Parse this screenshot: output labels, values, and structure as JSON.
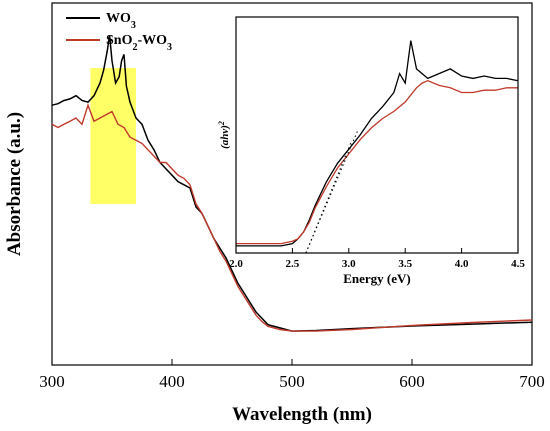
{
  "chart_data": [
    {
      "type": "line",
      "xlabel": "Wavelength (nm)",
      "ylabel": "Absorbance (a.u.)",
      "xlim": [
        300,
        700
      ],
      "xticks": [
        300,
        400,
        500,
        600,
        700
      ],
      "legend_position": "top-left",
      "highlight_region": {
        "x_range": [
          332,
          370
        ],
        "color": "#ffff66"
      },
      "series": [
        {
          "name": "WO",
          "name_sub": "3",
          "color": "#000000",
          "x": [
            300,
            305,
            310,
            315,
            320,
            325,
            330,
            335,
            340,
            343,
            346,
            348,
            350,
            353,
            356,
            358,
            360,
            362,
            365,
            370,
            375,
            380,
            385,
            390,
            395,
            400,
            405,
            410,
            415,
            420,
            425,
            430,
            435,
            440,
            445,
            450,
            455,
            460,
            465,
            470,
            475,
            480,
            490,
            500,
            520,
            550,
            600,
            650,
            700
          ],
          "y": [
            0.76,
            0.765,
            0.775,
            0.78,
            0.79,
            0.775,
            0.77,
            0.79,
            0.83,
            0.87,
            0.93,
            0.98,
            0.9,
            0.83,
            0.85,
            0.9,
            0.92,
            0.82,
            0.77,
            0.72,
            0.7,
            0.65,
            0.62,
            0.58,
            0.56,
            0.54,
            0.52,
            0.51,
            0.5,
            0.44,
            0.42,
            0.38,
            0.34,
            0.31,
            0.28,
            0.24,
            0.2,
            0.17,
            0.14,
            0.11,
            0.09,
            0.07,
            0.06,
            0.05,
            0.052,
            0.058,
            0.066,
            0.072,
            0.078
          ]
        },
        {
          "name": "SnO",
          "name_sub": "2",
          "name_suffix": "-WO",
          "name_suffix_sub": "3",
          "color": "#c0392b",
          "x": [
            300,
            305,
            310,
            315,
            320,
            325,
            330,
            335,
            340,
            345,
            350,
            355,
            360,
            365,
            370,
            375,
            380,
            385,
            390,
            395,
            400,
            405,
            410,
            415,
            420,
            425,
            430,
            435,
            440,
            445,
            450,
            455,
            460,
            465,
            470,
            475,
            480,
            490,
            500,
            520,
            550,
            600,
            650,
            700
          ],
          "y": [
            0.7,
            0.69,
            0.7,
            0.71,
            0.72,
            0.7,
            0.76,
            0.71,
            0.72,
            0.73,
            0.74,
            0.7,
            0.69,
            0.66,
            0.65,
            0.64,
            0.62,
            0.6,
            0.58,
            0.58,
            0.56,
            0.54,
            0.53,
            0.51,
            0.45,
            0.42,
            0.38,
            0.34,
            0.3,
            0.27,
            0.23,
            0.19,
            0.16,
            0.13,
            0.1,
            0.08,
            0.065,
            0.055,
            0.05,
            0.05,
            0.055,
            0.068,
            0.077,
            0.085
          ]
        }
      ]
    },
    {
      "type": "line",
      "position": "inset",
      "xlabel": "Energy (eV)",
      "ylabel": "(ahv)",
      "ylabel_sup": "2",
      "xlim": [
        2.0,
        4.5
      ],
      "xticks": [
        "2.0",
        "2.5",
        "3.0",
        "3.5",
        "4.0",
        "4.5"
      ],
      "series": [
        {
          "name": "WO3",
          "color": "#000000",
          "x": [
            2.0,
            2.2,
            2.4,
            2.5,
            2.55,
            2.6,
            2.65,
            2.7,
            2.8,
            2.9,
            3.0,
            3.1,
            3.2,
            3.3,
            3.4,
            3.45,
            3.5,
            3.55,
            3.6,
            3.65,
            3.7,
            3.8,
            3.9,
            4.0,
            4.1,
            4.2,
            4.3,
            4.4,
            4.5
          ],
          "y": [
            0.03,
            0.03,
            0.03,
            0.04,
            0.06,
            0.09,
            0.14,
            0.2,
            0.3,
            0.38,
            0.44,
            0.5,
            0.57,
            0.62,
            0.68,
            0.76,
            0.72,
            0.9,
            0.78,
            0.76,
            0.74,
            0.76,
            0.78,
            0.75,
            0.74,
            0.75,
            0.74,
            0.74,
            0.73
          ]
        },
        {
          "name": "SnO2-WO3",
          "color": "#c0392b",
          "x": [
            2.0,
            2.2,
            2.4,
            2.5,
            2.55,
            2.6,
            2.65,
            2.7,
            2.8,
            2.9,
            3.0,
            3.1,
            3.2,
            3.3,
            3.4,
            3.5,
            3.6,
            3.65,
            3.7,
            3.8,
            3.9,
            4.0,
            4.1,
            4.2,
            4.3,
            4.4,
            4.5
          ],
          "y": [
            0.04,
            0.04,
            0.04,
            0.05,
            0.06,
            0.09,
            0.13,
            0.19,
            0.28,
            0.36,
            0.42,
            0.48,
            0.53,
            0.57,
            0.6,
            0.64,
            0.7,
            0.72,
            0.73,
            0.71,
            0.7,
            0.68,
            0.68,
            0.69,
            0.69,
            0.7,
            0.7
          ]
        }
      ]
    }
  ]
}
